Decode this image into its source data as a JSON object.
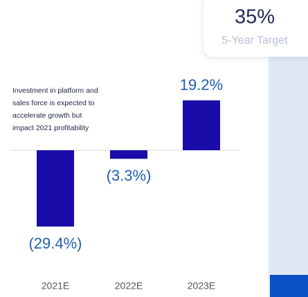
{
  "chart_data": {
    "type": "bar",
    "categories": [
      "2021E",
      "2022E",
      "2023E"
    ],
    "values": [
      -29.4,
      -3.3,
      19.2
    ],
    "value_labels": [
      "(29.4%)",
      "(3.3%)",
      "19.2%"
    ],
    "color": "#1a0ca8",
    "annotation": [
      "Investment in platform and",
      "sales force is expected to",
      "accelerate growth but",
      "impact 2021 profitability"
    ]
  },
  "target_card": {
    "value": "35%",
    "label": "5-Year Target"
  }
}
